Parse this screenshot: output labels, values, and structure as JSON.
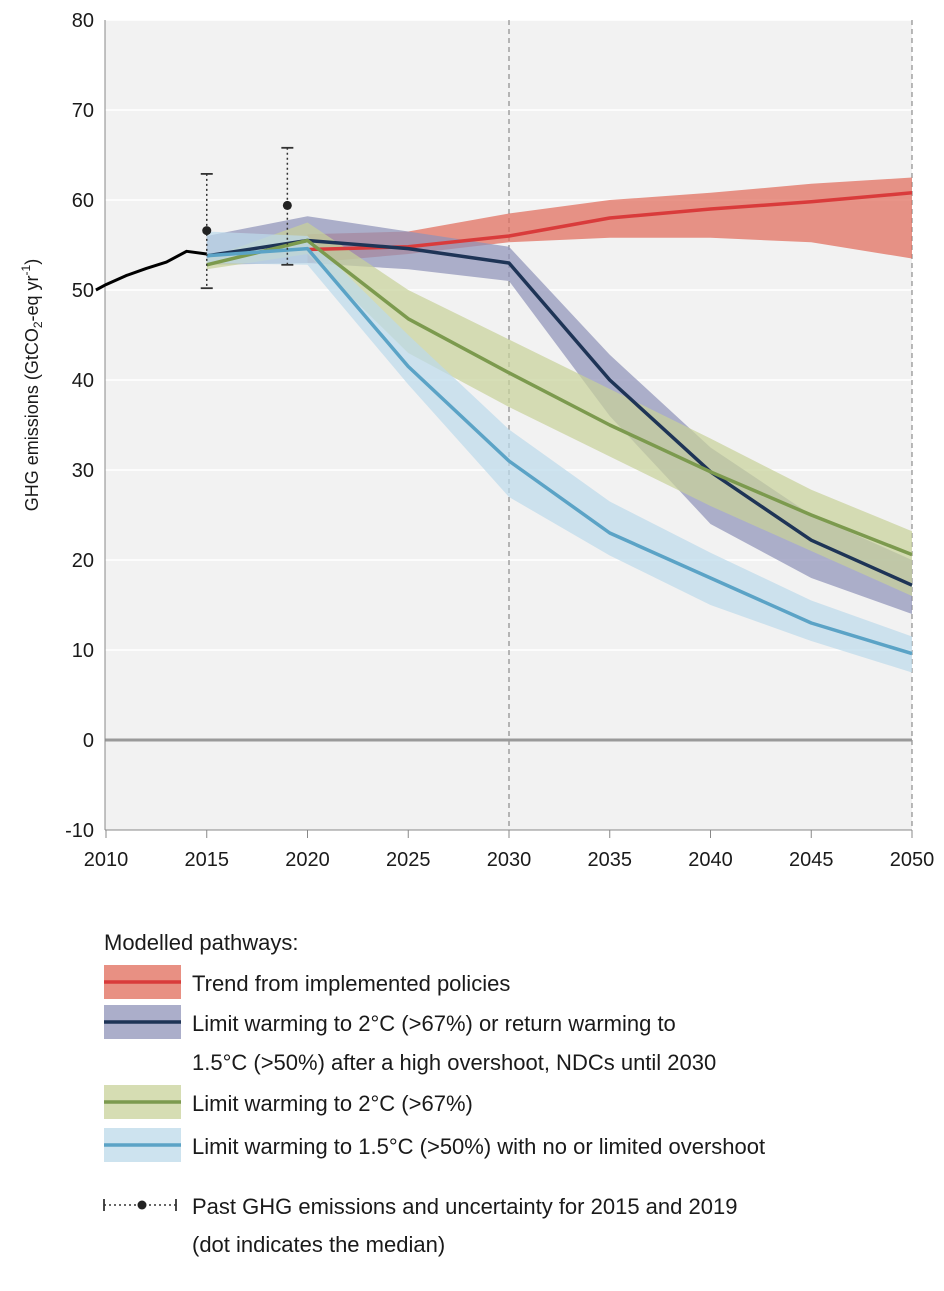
{
  "chart_data": {
    "type": "line",
    "ylabel": "GHG emissions (GtCO",
    "ylabel_sub": "2",
    "ylabel_tail": "-eq yr",
    "ylabel_sup": "-1",
    "ylabel_close": ")",
    "ylim": [
      -10,
      80
    ],
    "xlim": [
      2009.5,
      2050.5
    ],
    "y_ticks": [
      "-10",
      "0",
      "10",
      "20",
      "30",
      "40",
      "50",
      "60",
      "70",
      "80"
    ],
    "x_ticks": [
      "2010",
      "2015",
      "2020",
      "2025",
      "2030",
      "2035",
      "2040",
      "2045",
      "2050"
    ],
    "grid": "horizontal",
    "zero_line": true,
    "vertical_reference_lines": [
      2030,
      2050
    ],
    "legend_position": "bottom",
    "historical": {
      "x": [
        2009.5,
        2010,
        2011,
        2012,
        2013,
        2014,
        2015
      ],
      "y": [
        50.0,
        50.6,
        51.6,
        52.4,
        53.1,
        54.3,
        54.0
      ],
      "color": "#000000"
    },
    "uncertainty": [
      {
        "year": 2015,
        "median": 56.6,
        "low": 50.2,
        "high": 62.9
      },
      {
        "year": 2019,
        "median": 59.4,
        "low": 52.8,
        "high": 65.8
      }
    ],
    "series": [
      {
        "name": "Trend from implemented policies",
        "color": "#d93b3b",
        "band_color": "#e06b5a",
        "x": [
          2020,
          2025,
          2030,
          2035,
          2040,
          2045,
          2050
        ],
        "median": [
          54.5,
          54.8,
          56.0,
          58.0,
          59.0,
          59.8,
          60.8
        ],
        "band_x": [
          2020,
          2025,
          2030,
          2035,
          2040,
          2045,
          2050
        ],
        "low": [
          53.0,
          54.0,
          55.3,
          55.8,
          55.8,
          55.3,
          53.5
        ],
        "high": [
          56.2,
          56.5,
          58.5,
          60.0,
          60.8,
          61.8,
          62.5
        ]
      },
      {
        "name": "Limit warming to 2°C (>67%) or return warming to 1.5°C (>50%) after a high overshoot, NDCs until 2030",
        "color": "#1e3456",
        "band_color": "#8f93b8",
        "x": [
          2015,
          2020,
          2025,
          2030,
          2035,
          2040,
          2045,
          2050
        ],
        "median": [
          53.8,
          55.5,
          54.6,
          53.0,
          40.0,
          29.8,
          22.2,
          17.2
        ],
        "band_x": [
          2015,
          2020,
          2025,
          2030,
          2035,
          2040,
          2045,
          2050
        ],
        "low": [
          52.8,
          53.0,
          52.3,
          51.0,
          36.0,
          24.0,
          18.0,
          14.0
        ],
        "high": [
          56.0,
          58.2,
          56.5,
          54.8,
          42.8,
          32.5,
          25.0,
          20.0
        ]
      },
      {
        "name": "Limit warming to 2°C (>67%)",
        "color": "#7c9a4e",
        "band_color": "#c8d19a",
        "x": [
          2015,
          2020,
          2025,
          2030,
          2035,
          2040,
          2045,
          2050
        ],
        "median": [
          52.8,
          55.5,
          46.8,
          40.8,
          35.0,
          29.8,
          25.0,
          20.6
        ],
        "band_x": [
          2015,
          2020,
          2025,
          2030,
          2035,
          2040,
          2045,
          2050
        ],
        "low": [
          52.3,
          54.0,
          43.0,
          37.0,
          31.5,
          26.0,
          21.0,
          16.0
        ],
        "high": [
          53.5,
          57.5,
          50.0,
          44.5,
          39.0,
          33.5,
          27.8,
          23.2
        ]
      },
      {
        "name": "Limit warming to 1.5°C (>50%) with no or limited overshoot",
        "color": "#5ba3c6",
        "band_color": "#bcd9ea",
        "x": [
          2015,
          2020,
          2025,
          2030,
          2035,
          2040,
          2045,
          2050
        ],
        "median": [
          53.8,
          54.6,
          41.5,
          31.0,
          23.0,
          18.0,
          13.0,
          9.6
        ],
        "band_x": [
          2015,
          2020,
          2025,
          2030,
          2035,
          2040,
          2045,
          2050
        ],
        "low": [
          53.0,
          52.8,
          39.5,
          27.0,
          20.5,
          15.0,
          11.0,
          7.5
        ],
        "high": [
          56.5,
          56.0,
          45.0,
          34.5,
          26.5,
          20.8,
          15.5,
          11.5
        ]
      }
    ]
  },
  "legend": {
    "title": "Modelled pathways:",
    "items": [
      {
        "lines": [
          "Trend from implemented policies"
        ]
      },
      {
        "lines": [
          "Limit warming to 2°C (>67%) or return warming to",
          "1.5°C (>50%) after a high overshoot, NDCs until 2030"
        ]
      },
      {
        "lines": [
          "Limit warming to 2°C (>67%)"
        ]
      },
      {
        "lines": [
          "Limit warming to 1.5°C (>50%) with no or limited overshoot"
        ]
      }
    ],
    "past": {
      "lines": [
        "Past GHG emissions and uncertainty for 2015 and 2019",
        "(dot indicates the median)"
      ]
    }
  }
}
